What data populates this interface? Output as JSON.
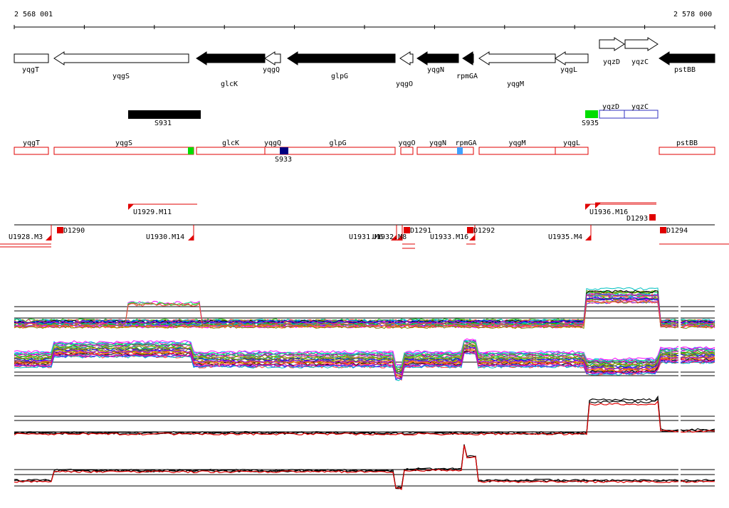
{
  "ruler": {
    "start_label": "2 568 001",
    "end_label": "2 578 000"
  },
  "colors": {
    "gene_fill": "#000000",
    "gene_outline": "#000000",
    "transcript_outline": "#e00000",
    "feature_green": "#00dd00",
    "feature_navy": "#000080",
    "feature_cyan": "#40a0ff",
    "feature_blue_outline": "#3030c0",
    "signal_red": "#e00000",
    "ref_line": "#000000"
  },
  "genes": [
    {
      "name": "yqgT",
      "strand": "+",
      "filled": false
    },
    {
      "name": "yqgS",
      "strand": "-",
      "filled": false
    },
    {
      "name": "glcK",
      "strand": "-",
      "filled": true
    },
    {
      "name": "yqgQ",
      "strand": "-",
      "filled": false
    },
    {
      "name": "glpG",
      "strand": "-",
      "filled": true
    },
    {
      "name": "yqgO",
      "strand": "-",
      "filled": false
    },
    {
      "name": "yqgN",
      "strand": "-",
      "filled": true
    },
    {
      "name": "rpmGA",
      "strand": "-",
      "filled": true
    },
    {
      "name": "yqgM",
      "strand": "-",
      "filled": false
    },
    {
      "name": "yqgL",
      "strand": "-",
      "filled": false
    },
    {
      "name": "yqzD",
      "strand": "+",
      "filled": false
    },
    {
      "name": "yqzC",
      "strand": "+",
      "filled": false
    },
    {
      "name": "pstBB",
      "strand": "-",
      "filled": true
    }
  ],
  "segments": [
    {
      "name": "S931",
      "kind": "black bar"
    },
    {
      "name": "S935",
      "kind": "green box"
    },
    {
      "name": "S933",
      "kind": "navy box"
    }
  ],
  "blue_boxes": [
    "yqzD",
    "yqzC"
  ],
  "transcripts": [
    "yqgT",
    "yqgS",
    "glcK",
    "yqgQ",
    "glpG",
    "yqgO",
    "yqgN",
    "rpmGA",
    "yqgM",
    "yqgL",
    "pstBB"
  ],
  "upshifts": [
    "U1929.M11",
    "U1936.M16"
  ],
  "downshifts": [
    "U1928.M3",
    "U1930.M14",
    "U1931.M6",
    "U1932.M8",
    "U1933.M16",
    "U1935.M4"
  ],
  "down_markers": [
    "D1290",
    "D1291",
    "D1292",
    "D1293",
    "D1294"
  ],
  "tracks": [
    {
      "name": "expression-profiles-upper",
      "style": "multicolor"
    },
    {
      "name": "expression-profiles-lower",
      "style": "multicolor"
    },
    {
      "name": "aggregate-profile-upper",
      "style": "black-red"
    },
    {
      "name": "aggregate-profile-lower",
      "style": "black-red"
    }
  ]
}
